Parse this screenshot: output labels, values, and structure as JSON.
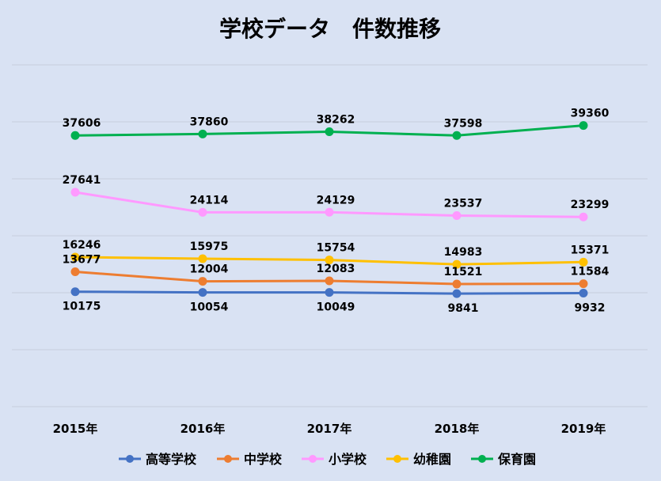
{
  "chart_data": {
    "type": "line",
    "title": "学校データ　件数推移",
    "categories": [
      "2015年",
      "2016年",
      "2017年",
      "2018年",
      "2019年"
    ],
    "ylim": [
      -10000,
      50000
    ],
    "y_axis_visible": false,
    "grid": true,
    "legend_position": "bottom",
    "series": [
      {
        "name": "高等学校",
        "color": "#4472c4",
        "values": [
          10175,
          10054,
          10049,
          9841,
          9932
        ],
        "label_pos": "below"
      },
      {
        "name": "中学校",
        "color": "#ed7d31",
        "values": [
          13677,
          12004,
          12083,
          11521,
          11584
        ],
        "label_pos": "above"
      },
      {
        "name": "小学校",
        "color": "#ff99ff",
        "values": [
          27641,
          24114,
          24129,
          23537,
          23299
        ],
        "label_pos": "above"
      },
      {
        "name": "幼稚園",
        "color": "#ffc000",
        "values": [
          16246,
          15975,
          15754,
          14983,
          15371
        ],
        "label_pos": "above"
      },
      {
        "name": "保育園",
        "color": "#00b050",
        "values": [
          37606,
          37860,
          38262,
          37598,
          39360
        ],
        "label_pos": "above"
      }
    ]
  }
}
